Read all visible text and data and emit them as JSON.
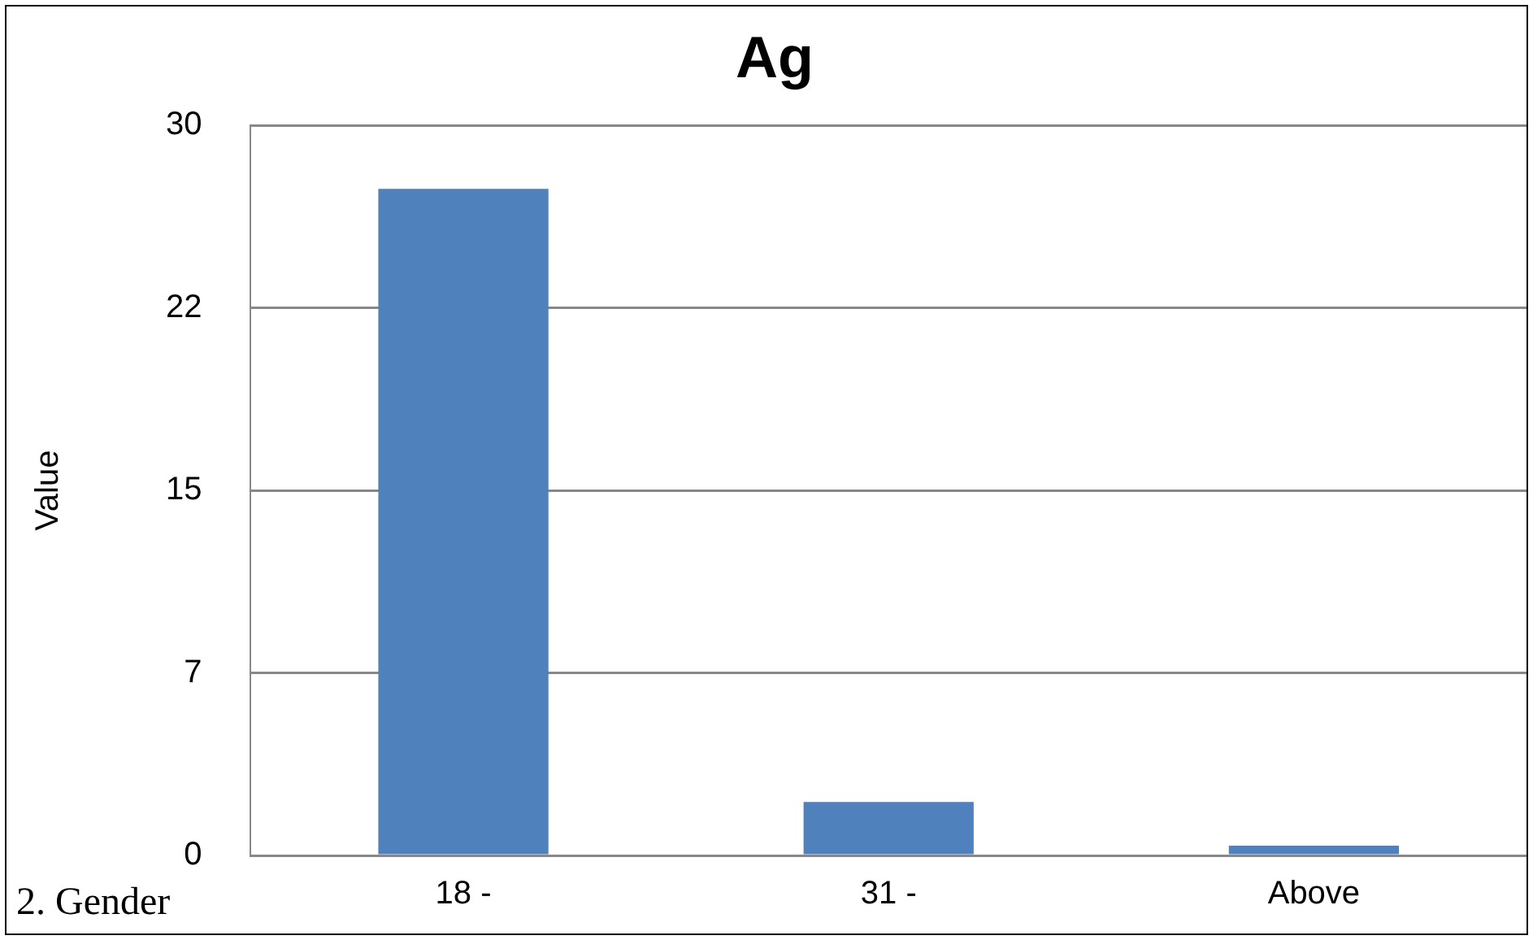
{
  "chart_data": {
    "type": "bar",
    "title": "Ag",
    "ylabel": "Value",
    "categories": [
      "18 -",
      "31 -",
      "Above"
    ],
    "values": [
      27.4,
      2.2,
      0.4
    ],
    "color": "#4f81bd",
    "ylim": [
      0,
      30
    ],
    "yticks": [
      0,
      {
        "value": 7.5,
        "label": "7"
      },
      15,
      {
        "value": 22.5,
        "label": "22"
      },
      30
    ],
    "grid": "y",
    "legend": false,
    "annotations": [
      "2. Gender"
    ]
  }
}
